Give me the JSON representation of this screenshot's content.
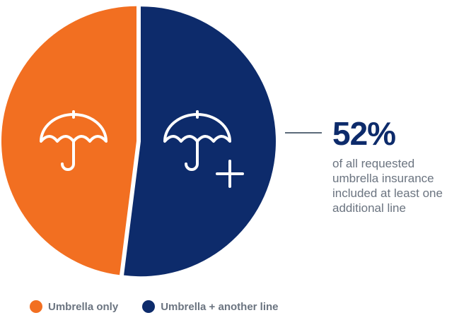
{
  "chart_data": {
    "type": "pie",
    "slices": [
      {
        "label": "Umbrella only",
        "value": 48,
        "color": "#f26f21",
        "icon": "umbrella-icon"
      },
      {
        "label": "Umbrella + another line",
        "value": 52,
        "color": "#0d2b6b",
        "icon": "umbrella-plus-icon"
      }
    ],
    "legend_position": "bottom-left"
  },
  "callout": {
    "value": "52%",
    "text": "of all requested umbrella insurance included at least one additional line"
  },
  "legend": {
    "items": [
      {
        "label": "Umbrella only",
        "color": "#f26f21"
      },
      {
        "label": "Umbrella + another line",
        "color": "#0d2b6b"
      }
    ]
  }
}
